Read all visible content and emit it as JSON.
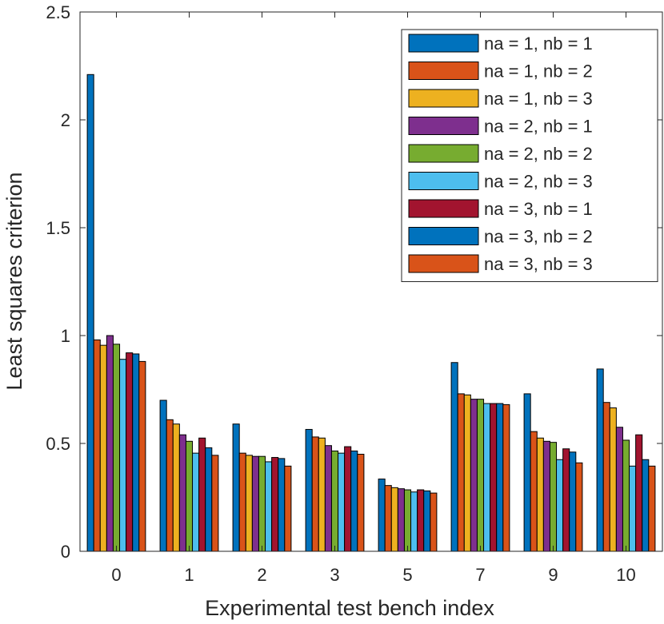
{
  "chart_data": {
    "type": "bar",
    "title": "",
    "xlabel": "Experimental test bench index",
    "ylabel": "Least squares criterion",
    "categories": [
      "0",
      "1",
      "2",
      "3",
      "5",
      "7",
      "9",
      "10"
    ],
    "ylim": [
      0,
      2.5
    ],
    "yticks": [
      0,
      0.5,
      1,
      1.5,
      2,
      2.5
    ],
    "ytick_labels": [
      "0",
      "0.5",
      "1",
      "1.5",
      "2",
      "2.5"
    ],
    "grid": false,
    "legend_position": "top-right",
    "series": [
      {
        "name": "na = 1, nb = 1",
        "color": "#0072BD",
        "values": [
          2.21,
          0.7,
          0.59,
          0.565,
          0.335,
          0.875,
          0.73,
          0.845
        ]
      },
      {
        "name": "na = 1, nb = 2",
        "color": "#D95319",
        "values": [
          0.98,
          0.61,
          0.455,
          0.53,
          0.305,
          0.73,
          0.555,
          0.69
        ]
      },
      {
        "name": "na = 1, nb = 3",
        "color": "#EDB120",
        "values": [
          0.955,
          0.59,
          0.445,
          0.525,
          0.295,
          0.725,
          0.525,
          0.665
        ]
      },
      {
        "name": "na = 2, nb = 1",
        "color": "#7E2F8E",
        "values": [
          1.0,
          0.54,
          0.44,
          0.49,
          0.29,
          0.705,
          0.51,
          0.575
        ]
      },
      {
        "name": "na = 2, nb = 2",
        "color": "#77AC30",
        "values": [
          0.96,
          0.51,
          0.44,
          0.465,
          0.285,
          0.705,
          0.505,
          0.515
        ]
      },
      {
        "name": "na = 2, nb = 3",
        "color": "#4DBEEE",
        "values": [
          0.89,
          0.455,
          0.415,
          0.455,
          0.275,
          0.685,
          0.425,
          0.395
        ]
      },
      {
        "name": "na = 3, nb = 1",
        "color": "#A2142F",
        "values": [
          0.92,
          0.525,
          0.435,
          0.485,
          0.285,
          0.685,
          0.475,
          0.54
        ]
      },
      {
        "name": "na = 3, nb = 2",
        "color": "#0072BD",
        "values": [
          0.915,
          0.48,
          0.43,
          0.465,
          0.28,
          0.685,
          0.46,
          0.425
        ]
      },
      {
        "name": "na = 3, nb = 3",
        "color": "#D95319",
        "values": [
          0.88,
          0.445,
          0.395,
          0.45,
          0.27,
          0.68,
          0.41,
          0.395
        ]
      }
    ]
  }
}
